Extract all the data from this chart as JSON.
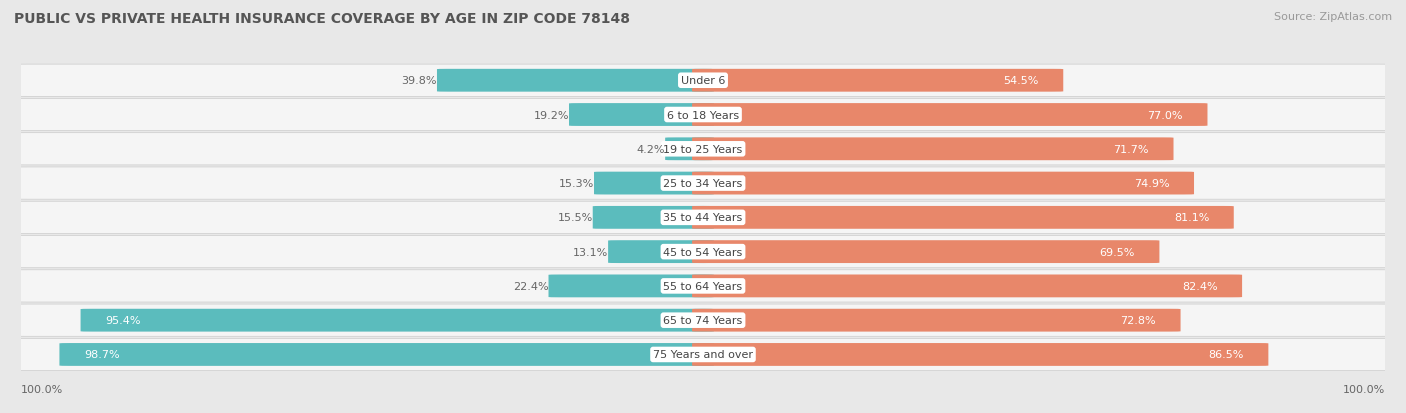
{
  "title": "PUBLIC VS PRIVATE HEALTH INSURANCE COVERAGE BY AGE IN ZIP CODE 78148",
  "source": "Source: ZipAtlas.com",
  "categories": [
    "Under 6",
    "6 to 18 Years",
    "19 to 25 Years",
    "25 to 34 Years",
    "35 to 44 Years",
    "45 to 54 Years",
    "55 to 64 Years",
    "65 to 74 Years",
    "75 Years and over"
  ],
  "public_values": [
    39.8,
    19.2,
    4.2,
    15.3,
    15.5,
    13.1,
    22.4,
    95.4,
    98.7
  ],
  "private_values": [
    54.5,
    77.0,
    71.7,
    74.9,
    81.1,
    69.5,
    82.4,
    72.8,
    86.5
  ],
  "public_color": "#5bbcbd",
  "private_color": "#e8876a",
  "bg_color": "#e8e8e8",
  "row_bg_color": "#f5f5f5",
  "title_color": "#555555",
  "source_color": "#999999",
  "text_color_light": "#ffffff",
  "text_color_dark": "#666666",
  "max_value": 100.0,
  "title_fontsize": 10,
  "source_fontsize": 8,
  "bar_label_fontsize": 8,
  "cat_label_fontsize": 8
}
